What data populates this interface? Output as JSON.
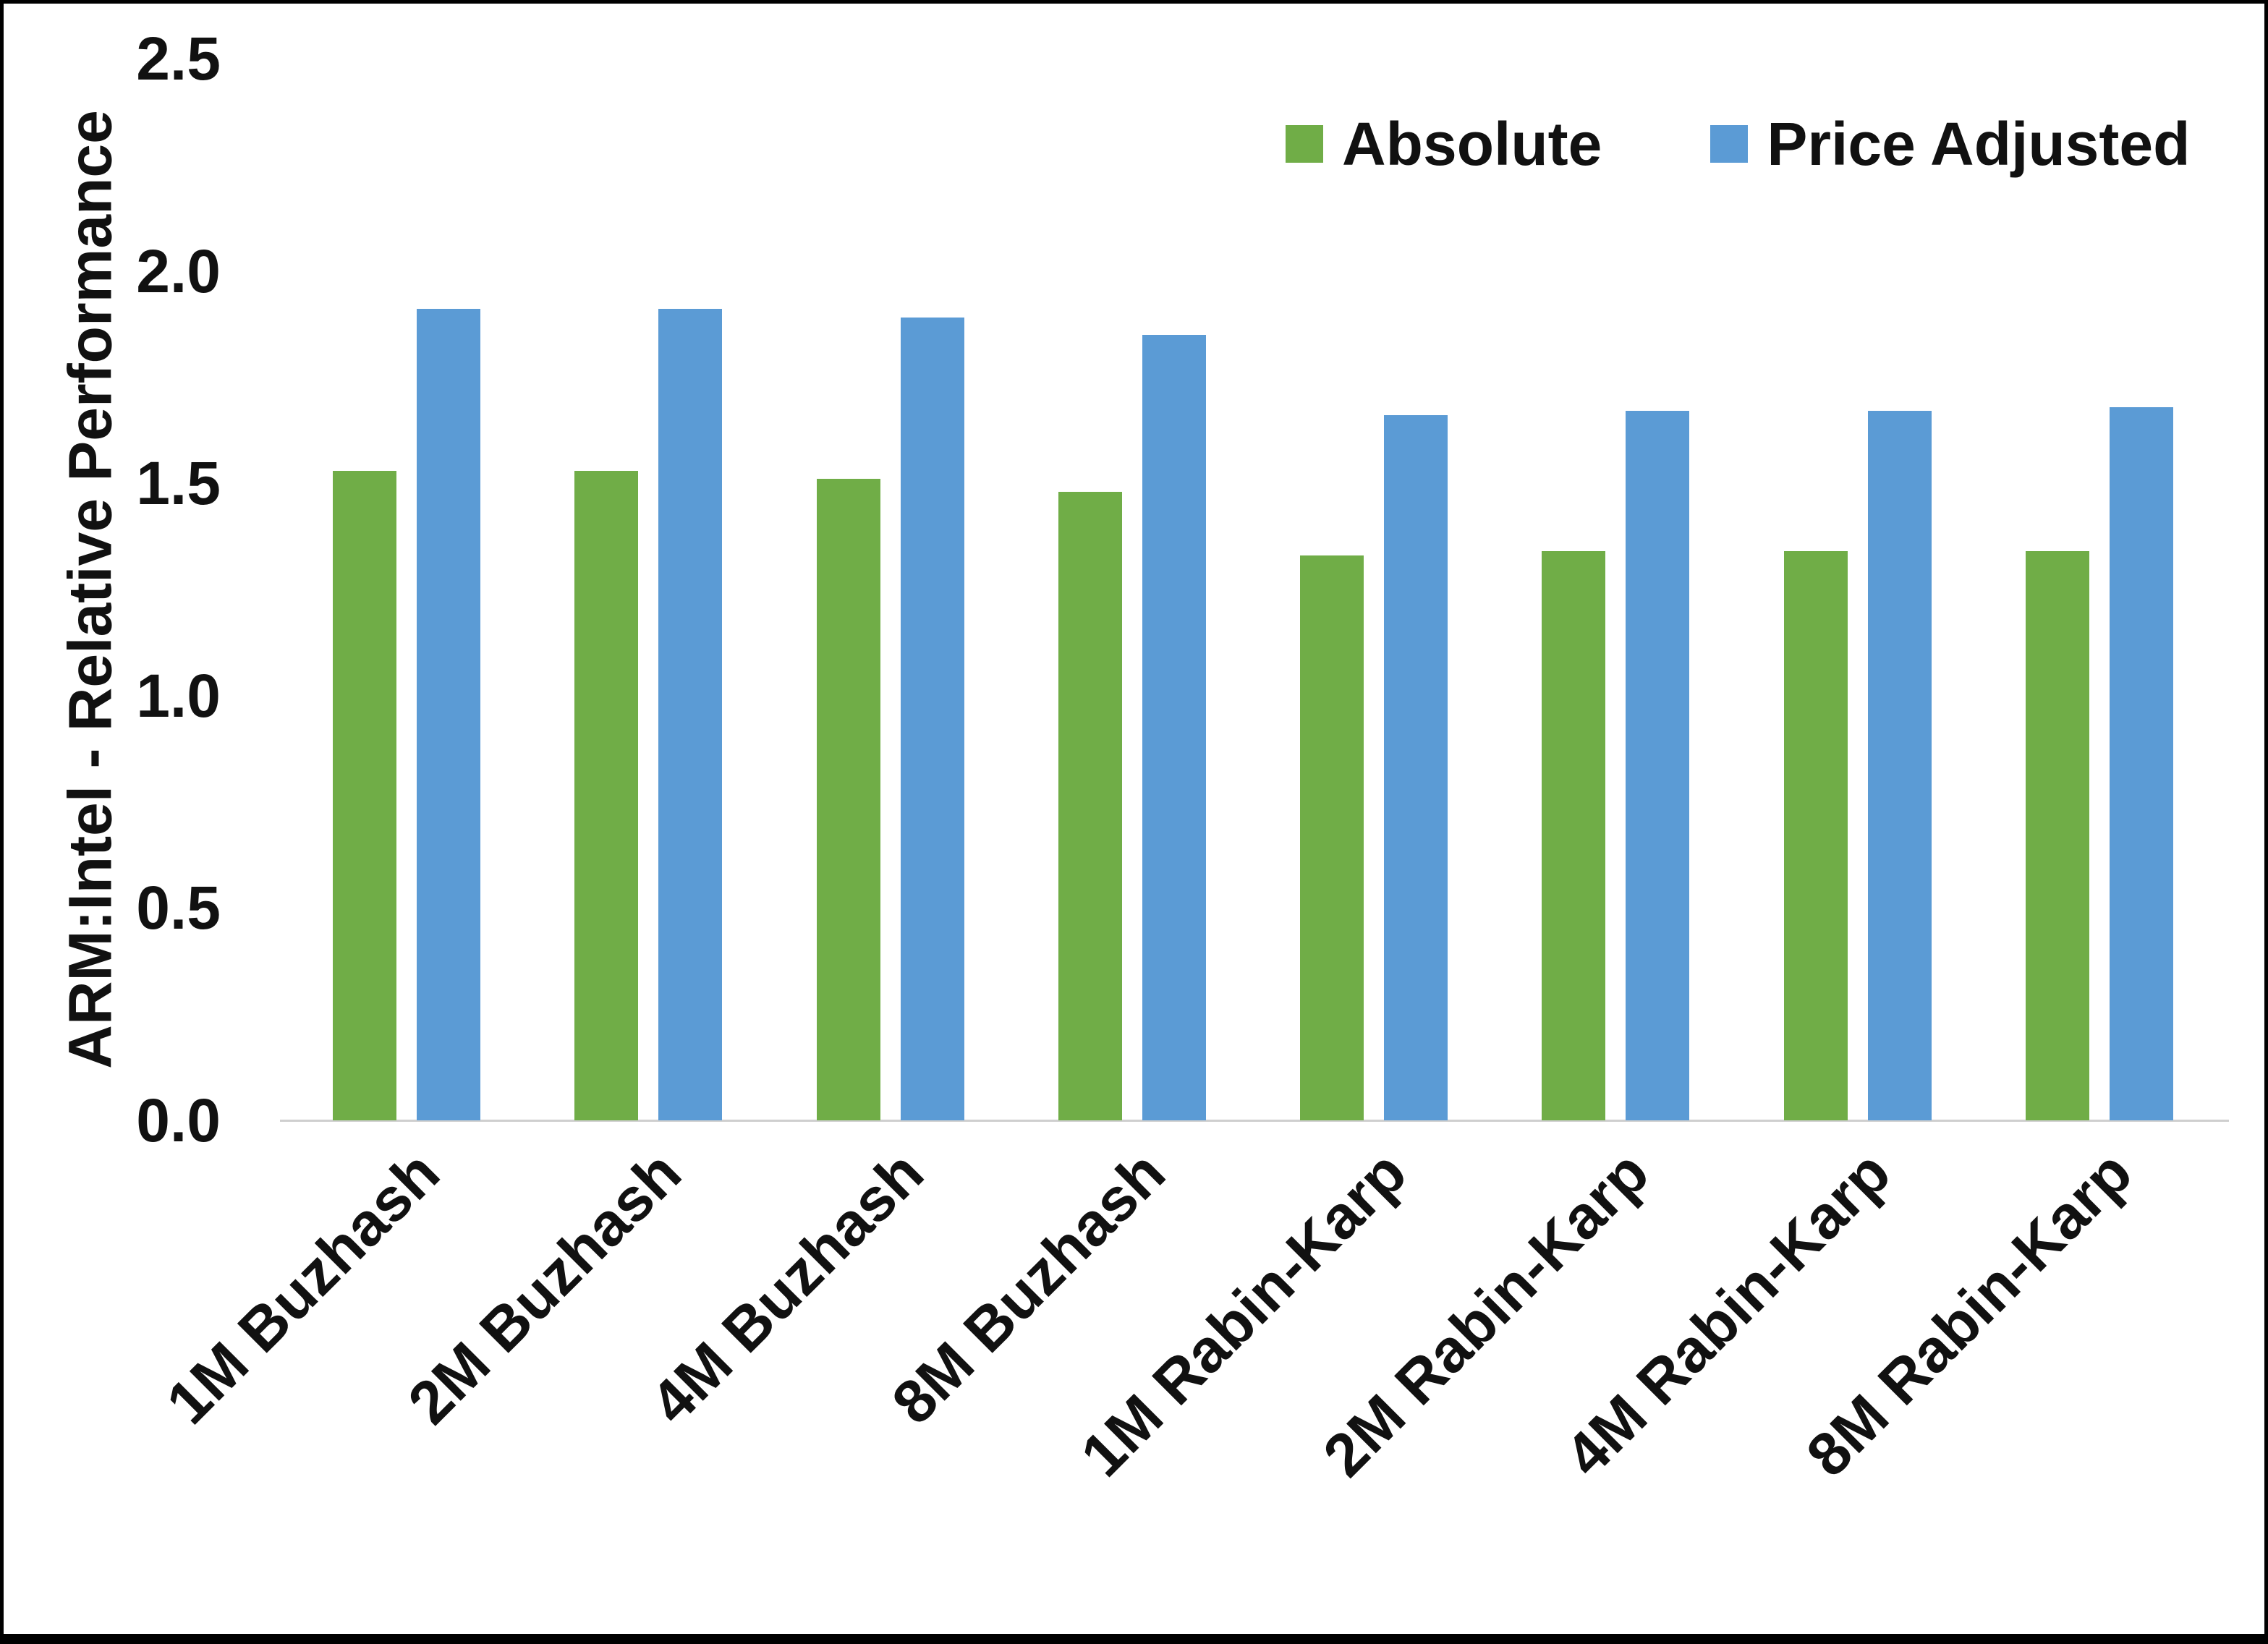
{
  "chart_data": {
    "type": "bar",
    "title": "",
    "xlabel": "",
    "ylabel": "ARM:Intel - Relative Performance",
    "ylim": [
      0,
      2.5
    ],
    "yticks": [
      0.0,
      0.5,
      1.0,
      1.5,
      2.0,
      2.5
    ],
    "ytick_labels": [
      "0.0",
      "0.5",
      "1.0",
      "1.5",
      "2.0",
      "2.5"
    ],
    "grid": false,
    "legend_position": "top-right",
    "categories": [
      "1M Buzhash",
      "2M Buzhash",
      "4M Buzhash",
      "8M Buzhash",
      "1M Rabin-Karp",
      "2M Rabin-Karp",
      "4M Rabin-Karp",
      "8M Rabin-Karp"
    ],
    "series": [
      {
        "name": "Absolute",
        "color": "#70AD47",
        "values": [
          1.53,
          1.53,
          1.51,
          1.48,
          1.33,
          1.34,
          1.34,
          1.34
        ]
      },
      {
        "name": "Price Adjusted",
        "color": "#5B9BD5",
        "values": [
          1.91,
          1.91,
          1.89,
          1.85,
          1.66,
          1.67,
          1.67,
          1.68
        ]
      }
    ]
  }
}
